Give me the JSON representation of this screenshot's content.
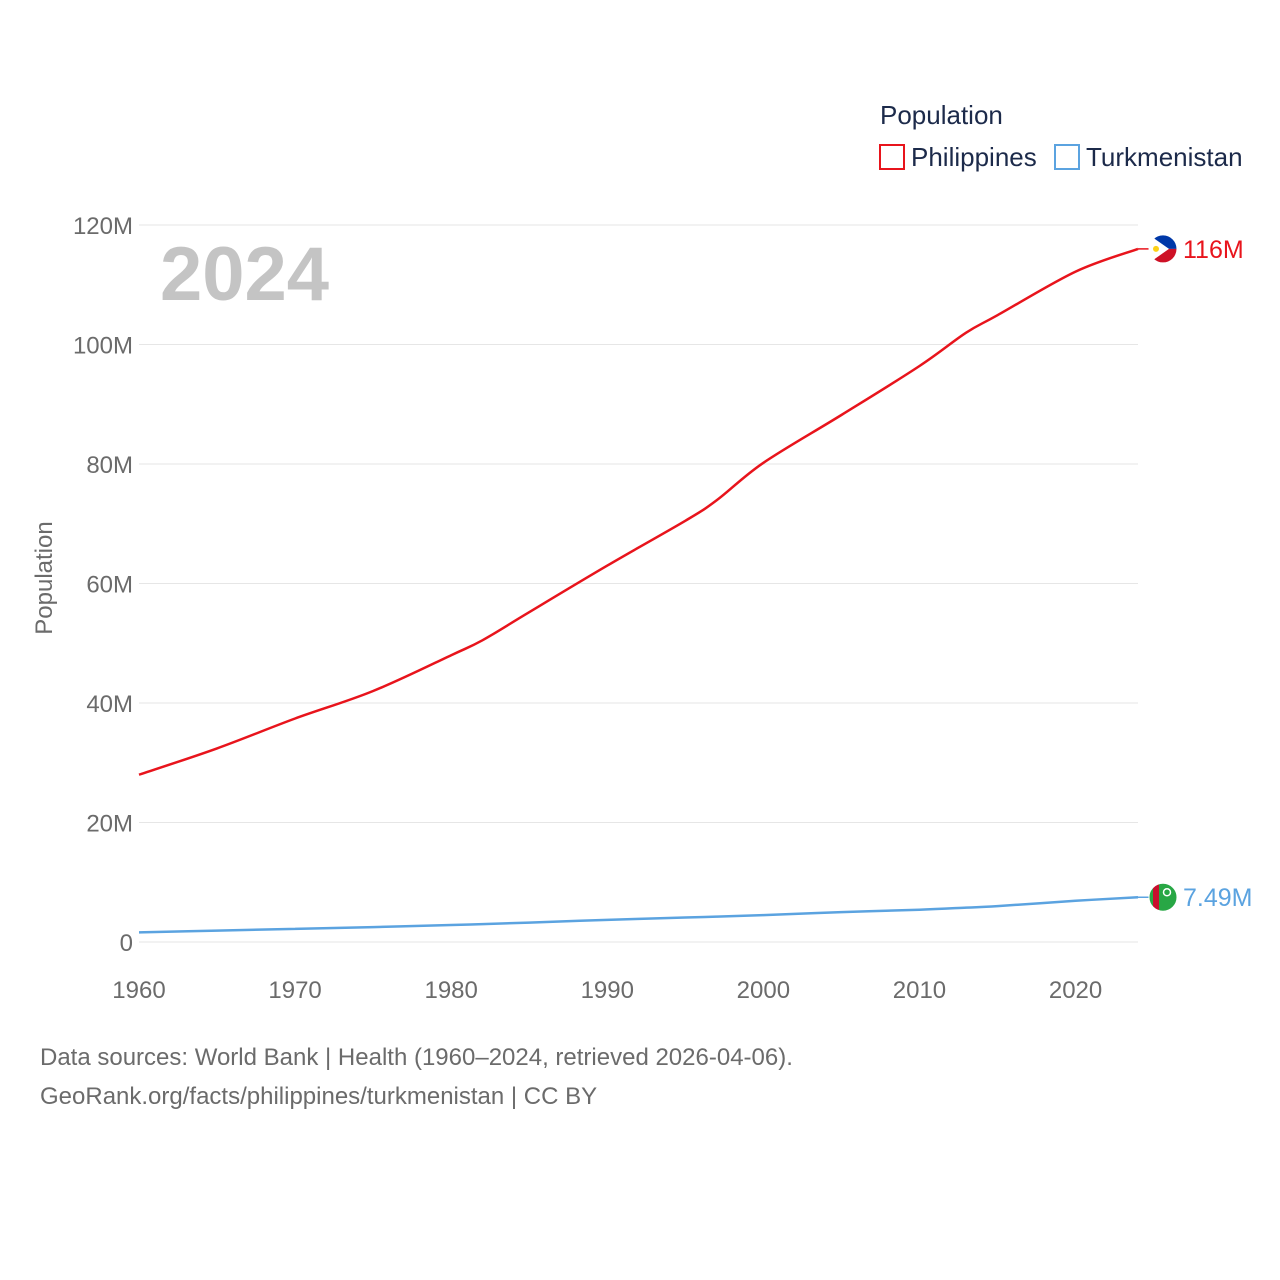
{
  "chart_data": {
    "type": "line",
    "year_label": "2024",
    "ylabel": "Population",
    "xlabel": "",
    "legend_title": "Population",
    "legend_position": "top-right",
    "xlim": [
      1960,
      2024
    ],
    "ylim": [
      0,
      120000000
    ],
    "x_ticks": [
      1960,
      1970,
      1980,
      1990,
      2000,
      2010,
      2020
    ],
    "y_ticks": [
      {
        "value": 0,
        "label": "0"
      },
      {
        "value": 20000000,
        "label": "20M"
      },
      {
        "value": 40000000,
        "label": "40M"
      },
      {
        "value": 60000000,
        "label": "60M"
      },
      {
        "value": 80000000,
        "label": "80M"
      },
      {
        "value": 100000000,
        "label": "100M"
      },
      {
        "value": 120000000,
        "label": "120M"
      }
    ],
    "x": [
      1960,
      1965,
      1970,
      1975,
      1980,
      1982,
      1985,
      1990,
      1995,
      1997,
      2000,
      2005,
      2010,
      2013,
      2015,
      2020,
      2024
    ],
    "series": [
      {
        "name": "Philippines",
        "color": "#e8141c",
        "end_label": "116M",
        "flag": "philippines-flag",
        "values": [
          28000000,
          32400000,
          37400000,
          42000000,
          48000000,
          50500000,
          55200000,
          63000000,
          70500000,
          73900000,
          80200000,
          88200000,
          96400000,
          102000000,
          104900000,
          112200000,
          116000000
        ]
      },
      {
        "name": "Turkmenistan",
        "color": "#5ba3e0",
        "end_label": "7.49M",
        "flag": "turkmenistan-flag",
        "values": [
          1600000,
          1900000,
          2200000,
          2500000,
          2850000,
          3000000,
          3250000,
          3700000,
          4100000,
          4250000,
          4500000,
          5000000,
          5400000,
          5750000,
          6000000,
          6900000,
          7490000
        ]
      }
    ]
  },
  "source": {
    "line1": "Data sources: World Bank | Health (1960–2024, retrieved 2026-04-06).",
    "line2": "GeoRank.org/facts/philippines/turkmenistan | CC BY"
  }
}
